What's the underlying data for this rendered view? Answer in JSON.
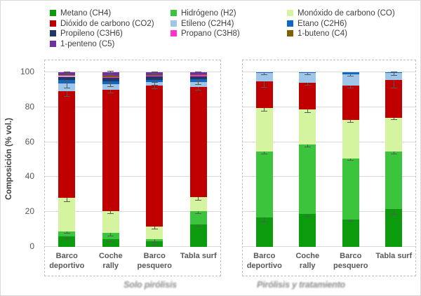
{
  "chart_data": {
    "type": "bar",
    "stacked": true,
    "title": "",
    "ylabel": "Composición (% vol.)",
    "xlabel": "",
    "ylim": [
      0,
      100
    ],
    "y_ticks": [
      100,
      80,
      60,
      40,
      20,
      0
    ],
    "grid": true,
    "legend_position": "top",
    "categories": [
      "Barco deportivo",
      "Coche rally",
      "Barco pesquero",
      "Tabla surf"
    ],
    "category_label_lines": [
      [
        "Barco",
        "deportivo"
      ],
      [
        "Coche",
        "rally"
      ],
      [
        "Barco",
        "pesquero"
      ],
      [
        "Tabla surf"
      ]
    ],
    "series_defs": [
      {
        "key": "metano",
        "label": "Metano (CH4)",
        "color": "#0C9B0C"
      },
      {
        "key": "hidrogeno",
        "label": "Hidrógeno (H2)",
        "color": "#3DC43D"
      },
      {
        "key": "monoxido",
        "label": "Monóxido de carbono (CO)",
        "color": "#D4F4A0"
      },
      {
        "key": "dioxido",
        "label": "Dióxido de carbono (CO2)",
        "color": "#C00000"
      },
      {
        "key": "etileno",
        "label": "Etileno (C2H4)",
        "color": "#9FC5E8"
      },
      {
        "key": "etano",
        "label": "Etano (C2H6)",
        "color": "#1167C4"
      },
      {
        "key": "propileno",
        "label": "Propileno (C3H6)",
        "color": "#1F3864"
      },
      {
        "key": "propano",
        "label": "Propano (C3H8)",
        "color": "#FF33CC"
      },
      {
        "key": "buteno",
        "label": "1-buteno (C4)",
        "color": "#7F6000"
      },
      {
        "key": "penteno",
        "label": "1-penteno (C5)",
        "color": "#7030A0"
      }
    ],
    "groups": [
      {
        "caption": "Solo pirólisis",
        "series": [
          {
            "name": "Metano (CH4)",
            "values": [
              6,
              4.5,
              3.2,
              13
            ]
          },
          {
            "name": "Hidrógeno (H2)",
            "values": [
              3,
              3.5,
              1.1,
              7.4
            ]
          },
          {
            "name": "Monóxido de carbono (CO)",
            "values": [
              19,
              12.5,
              7.3,
              8
            ]
          },
          {
            "name": "Dióxido de carbono (CO2)",
            "values": [
              61,
              69.5,
              80.6,
              63.3
            ]
          },
          {
            "name": "Etileno (C2H4)",
            "values": [
              4.5,
              3.2,
              2.1,
              2.7
            ]
          },
          {
            "name": "Etano (C2H6)",
            "values": [
              2,
              1.7,
              1.3,
              1.5
            ]
          },
          {
            "name": "Propileno (C3H6)",
            "values": [
              2,
              2,
              2.1,
              1.7
            ]
          },
          {
            "name": "Propano (C3H8)",
            "values": [
              0.3,
              0.3,
              0.2,
              0.8
            ]
          },
          {
            "name": "1-buteno (C4)",
            "values": [
              0.7,
              0.8,
              0.4,
              0.6
            ]
          },
          {
            "name": "1-penteno (C5)",
            "values": [
              1.5,
              2,
              1.7,
              1
            ]
          }
        ],
        "errors": {
          "metano": [
            0.8,
            0.9,
            1.5,
            0.8
          ],
          "hidrogeno": [
            0.6,
            1.2,
            0.9,
            0.8
          ],
          "monoxido": [
            1.3,
            0.8,
            0.7,
            1.2
          ],
          "dioxido": [
            2.2,
            1.3,
            1.2,
            1.3
          ],
          "etileno": [
            1.8,
            1,
            1,
            0.9
          ],
          "etano": [
            0.6,
            0.8,
            0.8,
            0.7
          ],
          "penteno": [
            0.5,
            0.7,
            0.5,
            0.6
          ]
        }
      },
      {
        "caption": "Pirólisis y tratamiento",
        "series": [
          {
            "name": "Metano (CH4)",
            "values": [
              17,
              19,
              15.5,
              21.5
            ]
          },
          {
            "name": "Hidrógeno (H2)",
            "values": [
              37.7,
              39.7,
              35.2,
              33.2
            ]
          },
          {
            "name": "Monóxido de carbono (CO)",
            "values": [
              24.7,
              19.9,
              21.9,
              19.4
            ]
          },
          {
            "name": "Dióxido de carbono (CO2)",
            "values": [
              15.4,
              15.5,
              19.8,
              21.4
            ]
          },
          {
            "name": "Etileno (C2H4)",
            "values": [
              4.7,
              5.4,
              6.4,
              4.1
            ]
          },
          {
            "name": "Etano (C2H6)",
            "values": [
              0.5,
              0.5,
              1.2,
              0.4
            ]
          },
          {
            "name": "Propileno (C3H6)",
            "values": [
              0,
              0,
              0,
              0
            ]
          },
          {
            "name": "Propano (C3H8)",
            "values": [
              0,
              0,
              0,
              0
            ]
          },
          {
            "name": "1-buteno (C4)",
            "values": [
              0,
              0,
              0,
              0
            ]
          },
          {
            "name": "1-penteno (C5)",
            "values": [
              0,
              0,
              0,
              0
            ]
          }
        ],
        "errors": {
          "metano": [
            2,
            1,
            0.4,
            2.2
          ],
          "hidrogeno": [
            1,
            1,
            0.5,
            1
          ],
          "monoxido": [
            1,
            1.2,
            0.6,
            0.8
          ],
          "dioxido": [
            3,
            0.8,
            0.8,
            4
          ],
          "etileno": [
            0.5,
            0.5,
            0.5,
            0.8
          ]
        }
      }
    ]
  }
}
